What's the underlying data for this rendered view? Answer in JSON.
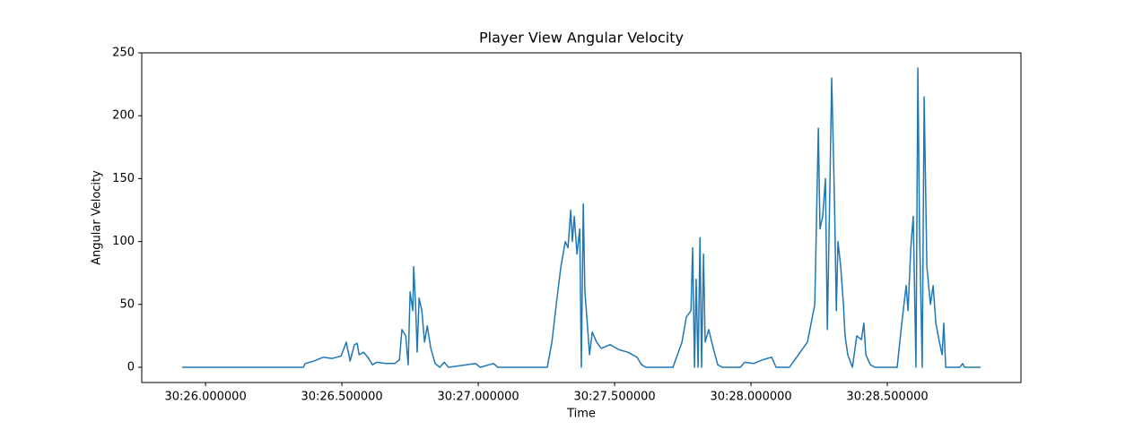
{
  "chart_data": {
    "type": "line",
    "title": "Player View Angular Velocity",
    "x_label": "Time",
    "y_label": "Angular Velocity",
    "color": "#1f77b4",
    "x": [
      25.914,
      26.359,
      26.365,
      26.398,
      26.431,
      26.464,
      26.497,
      26.516,
      26.53,
      26.546,
      26.556,
      26.563,
      26.579,
      26.595,
      26.612,
      26.628,
      26.661,
      26.694,
      26.711,
      26.72,
      26.734,
      26.743,
      26.75,
      26.76,
      26.763,
      26.77,
      26.776,
      26.783,
      26.793,
      26.803,
      26.813,
      26.826,
      26.842,
      26.859,
      26.875,
      26.891,
      26.99,
      27.007,
      27.056,
      27.072,
      27.253,
      27.27,
      27.286,
      27.303,
      27.319,
      27.329,
      27.339,
      27.345,
      27.352,
      27.362,
      27.372,
      27.378,
      27.385,
      27.391,
      27.398,
      27.408,
      27.418,
      27.434,
      27.451,
      27.484,
      27.516,
      27.549,
      27.582,
      27.599,
      27.615,
      27.714,
      27.747,
      27.763,
      27.78,
      27.786,
      27.793,
      27.799,
      27.806,
      27.813,
      27.819,
      27.826,
      27.832,
      27.845,
      27.862,
      27.878,
      27.895,
      27.961,
      27.977,
      28.01,
      28.043,
      28.076,
      28.092,
      28.141,
      28.207,
      28.234,
      28.247,
      28.253,
      28.263,
      28.273,
      28.28,
      28.289,
      28.296,
      28.306,
      28.313,
      28.319,
      28.329,
      28.339,
      28.345,
      28.355,
      28.372,
      28.388,
      28.405,
      28.414,
      28.421,
      28.438,
      28.454,
      28.536,
      28.553,
      28.569,
      28.576,
      28.586,
      28.595,
      28.605,
      28.612,
      28.618,
      28.628,
      28.635,
      28.645,
      28.658,
      28.668,
      28.678,
      28.691,
      28.701,
      28.707,
      28.714,
      28.766,
      28.776,
      28.783,
      28.842
    ],
    "values": [
      0,
      0,
      3,
      5,
      8,
      7,
      9,
      20,
      5,
      18,
      19,
      10,
      12,
      8,
      2,
      4,
      3,
      3,
      6,
      30,
      25,
      2,
      60,
      45,
      80,
      50,
      12,
      55,
      45,
      20,
      33,
      15,
      3,
      0,
      4,
      0,
      3,
      0,
      3,
      0,
      0,
      20,
      50,
      80,
      100,
      95,
      125,
      100,
      120,
      90,
      110,
      0,
      130,
      60,
      40,
      10,
      28,
      20,
      15,
      18,
      14,
      12,
      8,
      2,
      0,
      0,
      20,
      40,
      45,
      95,
      0,
      70,
      0,
      103,
      0,
      90,
      20,
      30,
      15,
      2,
      0,
      0,
      4,
      3,
      6,
      8,
      0,
      0,
      20,
      50,
      190,
      110,
      120,
      150,
      30,
      140,
      230,
      135,
      45,
      100,
      80,
      50,
      25,
      10,
      0,
      25,
      22,
      35,
      10,
      2,
      0,
      0,
      35,
      65,
      45,
      95,
      120,
      0,
      238,
      110,
      0,
      215,
      80,
      50,
      65,
      35,
      20,
      10,
      35,
      0,
      0,
      3,
      0,
      0
    ],
    "xlim": [
      25.766,
      28.99
    ],
    "ylim": [
      -12.1,
      250
    ],
    "xticks": [
      {
        "value": 26.0,
        "label": "30:26.000000"
      },
      {
        "value": 26.5,
        "label": "30:26.500000"
      },
      {
        "value": 27.0,
        "label": "30:27.000000"
      },
      {
        "value": 27.5,
        "label": "30:27.500000"
      },
      {
        "value": 28.0,
        "label": "30:28.000000"
      },
      {
        "value": 28.5,
        "label": "30:28.500000"
      }
    ],
    "yticks": [
      0,
      50,
      100,
      150,
      200,
      250
    ]
  }
}
